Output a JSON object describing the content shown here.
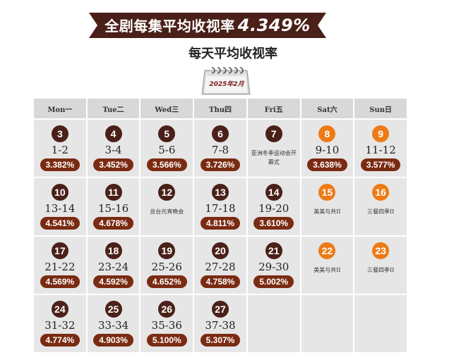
{
  "header": {
    "banner_title": "全剧每集平均收视率",
    "banner_value": "4.349%",
    "subtitle": "每天平均收视率",
    "calendar_label": "2025年2月"
  },
  "colors": {
    "banner": "#4a2018",
    "dark_circle": "#4a2018",
    "weekend_circle": "#ee7a16",
    "rating_pill": "#7a2b12"
  },
  "weekdays": [
    "Mon一",
    "Tue二",
    "Wed三",
    "Thu四",
    "Fri五",
    "Sat六",
    "Sun日"
  ],
  "cells": [
    {
      "day": "3",
      "ep": "1-2",
      "rating": "3.382%",
      "note": "",
      "weekend": false
    },
    {
      "day": "4",
      "ep": "3-4",
      "rating": "3.452%",
      "note": "",
      "weekend": false
    },
    {
      "day": "5",
      "ep": "5-6",
      "rating": "3.566%",
      "note": "",
      "weekend": false
    },
    {
      "day": "6",
      "ep": "7-8",
      "rating": "3.726%",
      "note": "",
      "weekend": false
    },
    {
      "day": "7",
      "ep": "",
      "rating": "",
      "note": "亚洲冬季运动会开幕式",
      "weekend": false
    },
    {
      "day": "8",
      "ep": "9-10",
      "rating": "3.638%",
      "note": "",
      "weekend": true
    },
    {
      "day": "9",
      "ep": "11-12",
      "rating": "3.577%",
      "note": "",
      "weekend": true
    },
    {
      "day": "10",
      "ep": "13-14",
      "rating": "4.541%",
      "note": "",
      "weekend": false
    },
    {
      "day": "11",
      "ep": "15-16",
      "rating": "4.678%",
      "note": "",
      "weekend": false
    },
    {
      "day": "12",
      "ep": "",
      "rating": "",
      "note": "总台元宵晚会",
      "weekend": false
    },
    {
      "day": "13",
      "ep": "17-18",
      "rating": "4.811%",
      "note": "",
      "weekend": false
    },
    {
      "day": "14",
      "ep": "19-20",
      "rating": "3.610%",
      "note": "",
      "weekend": false
    },
    {
      "day": "15",
      "ep": "",
      "rating": "",
      "note": "美美与共II",
      "weekend": true
    },
    {
      "day": "16",
      "ep": "",
      "rating": "",
      "note": "三餐四季II",
      "weekend": true
    },
    {
      "day": "17",
      "ep": "21-22",
      "rating": "4.569%",
      "note": "",
      "weekend": false
    },
    {
      "day": "18",
      "ep": "23-24",
      "rating": "4.592%",
      "note": "",
      "weekend": false
    },
    {
      "day": "19",
      "ep": "25-26",
      "rating": "4.652%",
      "note": "",
      "weekend": false
    },
    {
      "day": "20",
      "ep": "27-28",
      "rating": "4.758%",
      "note": "",
      "weekend": false
    },
    {
      "day": "21",
      "ep": "29-30",
      "rating": "5.002%",
      "note": "",
      "weekend": false
    },
    {
      "day": "22",
      "ep": "",
      "rating": "",
      "note": "美美与共II",
      "weekend": true
    },
    {
      "day": "23",
      "ep": "",
      "rating": "",
      "note": "三餐四季II",
      "weekend": true
    },
    {
      "day": "24",
      "ep": "31-32",
      "rating": "4.774%",
      "note": "",
      "weekend": false
    },
    {
      "day": "25",
      "ep": "33-34",
      "rating": "4.903%",
      "note": "",
      "weekend": false
    },
    {
      "day": "26",
      "ep": "35-36",
      "rating": "5.100%",
      "note": "",
      "weekend": false
    },
    {
      "day": "27",
      "ep": "37-38",
      "rating": "5.307%",
      "note": "",
      "weekend": false
    },
    {
      "day": "",
      "ep": "",
      "rating": "",
      "note": "",
      "weekend": false
    },
    {
      "day": "",
      "ep": "",
      "rating": "",
      "note": "",
      "weekend": false
    },
    {
      "day": "",
      "ep": "",
      "rating": "",
      "note": "",
      "weekend": false
    }
  ]
}
